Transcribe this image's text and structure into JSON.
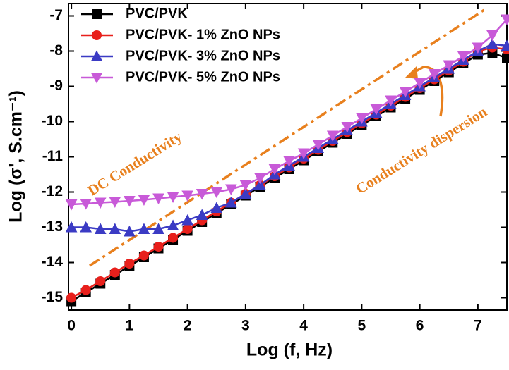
{
  "chart_data": {
    "type": "line",
    "xlabel": "Log (f, Hz)",
    "ylabel": "Log (σ', S.cm⁻¹)",
    "x": [
      0,
      0.25,
      0.5,
      0.75,
      1,
      1.25,
      1.5,
      1.75,
      2,
      2.25,
      2.5,
      2.75,
      3,
      3.25,
      3.5,
      3.75,
      4,
      4.25,
      4.5,
      4.75,
      5,
      5.25,
      5.5,
      5.75,
      6,
      6.25,
      6.5,
      6.75,
      7,
      7.25,
      7.5
    ],
    "series": [
      {
        "name": "PVC/PVK",
        "color": "#000000",
        "marker": "square",
        "values": [
          -15.1,
          -14.85,
          -14.6,
          -14.35,
          -14.1,
          -13.85,
          -13.6,
          -13.35,
          -13.1,
          -12.85,
          -12.6,
          -12.35,
          -12.1,
          -11.85,
          -11.6,
          -11.35,
          -11.1,
          -10.85,
          -10.6,
          -10.35,
          -10.1,
          -9.85,
          -9.6,
          -9.35,
          -9.1,
          -8.85,
          -8.6,
          -8.35,
          -8.1,
          -8.05,
          -8.2
        ]
      },
      {
        "name": "PVC/PVK- 1% ZnO NPs",
        "color": "#e8201c",
        "marker": "circle",
        "values": [
          -15.0,
          -14.78,
          -14.53,
          -14.28,
          -14.03,
          -13.8,
          -13.55,
          -13.3,
          -13.05,
          -12.8,
          -12.55,
          -12.3,
          -12.05,
          -11.8,
          -11.55,
          -11.3,
          -11.05,
          -10.8,
          -10.55,
          -10.3,
          -10.05,
          -9.8,
          -9.55,
          -9.3,
          -9.05,
          -8.8,
          -8.55,
          -8.3,
          -8.0,
          -7.9,
          -7.95
        ]
      },
      {
        "name": "PVC/PVK- 3% ZnO NPs",
        "color": "#3b3bc4",
        "marker": "triangle-up",
        "values": [
          -13.0,
          -13.0,
          -13.05,
          -13.05,
          -13.12,
          -13.05,
          -13.05,
          -12.95,
          -12.8,
          -12.65,
          -12.45,
          -12.3,
          -12.05,
          -11.8,
          -11.5,
          -11.25,
          -11.0,
          -10.75,
          -10.5,
          -10.25,
          -10.0,
          -9.75,
          -9.5,
          -9.25,
          -9.0,
          -8.75,
          -8.5,
          -8.25,
          -8.0,
          -7.8,
          -7.85
        ]
      },
      {
        "name": "PVC/PVK- 5% ZnO NPs",
        "color": "#c85ad8",
        "marker": "triangle-down",
        "values": [
          -12.35,
          -12.33,
          -12.3,
          -12.28,
          -12.25,
          -12.22,
          -12.18,
          -12.14,
          -12.1,
          -12.05,
          -12.0,
          -11.92,
          -11.8,
          -11.6,
          -11.35,
          -11.12,
          -10.9,
          -10.65,
          -10.4,
          -10.15,
          -9.9,
          -9.65,
          -9.4,
          -9.15,
          -8.9,
          -8.65,
          -8.4,
          -8.15,
          -7.9,
          -7.55,
          -7.1
        ]
      }
    ],
    "xlim": [
      -0.05,
      7.5
    ],
    "ylim": [
      -15.35,
      -6.65
    ],
    "xticks": [
      0,
      1,
      2,
      3,
      4,
      5,
      6,
      7
    ],
    "yticks": [
      -15,
      -14,
      -13,
      -12,
      -11,
      -10,
      -9,
      -8,
      -7
    ],
    "legend": "upper left",
    "annotations": [
      "DC Conductivity",
      "Conductivity dispersion"
    ]
  }
}
